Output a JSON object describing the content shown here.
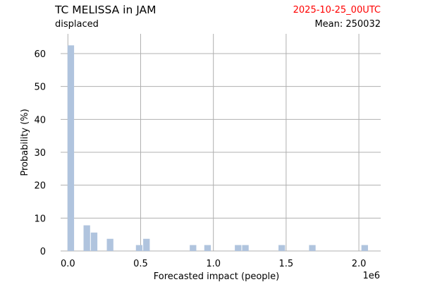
{
  "header": {
    "title": "TC MELISSA in JAM",
    "subtitle": "displaced",
    "date": "2025-10-25_00UTC",
    "mean": "Mean: 250032"
  },
  "colors": {
    "bar": "#b0c4de",
    "date_text": "#ff0000",
    "grid": "#b0b0b0"
  },
  "chart_data": {
    "type": "bar",
    "title": "TC MELISSA in JAM",
    "subtitle": "displaced",
    "xlabel": "Forecasted impact (people)",
    "ylabel": "Probability (%)",
    "x_scale_label": "1e6",
    "xlim": [
      -0.05,
      2.15
    ],
    "ylim": [
      0,
      66
    ],
    "grid": true,
    "x_ticks": [
      0.0,
      0.5,
      1.0,
      1.5,
      2.0
    ],
    "x_tick_labels": [
      "0.0",
      "0.5",
      "1.0",
      "1.5",
      "2.0"
    ],
    "y_ticks": [
      0,
      10,
      20,
      30,
      40,
      50,
      60
    ],
    "y_tick_labels": [
      "0",
      "10",
      "20",
      "30",
      "40",
      "50",
      "60"
    ],
    "x": [
      0.02,
      0.13,
      0.18,
      0.29,
      0.49,
      0.54,
      0.86,
      0.96,
      1.17,
      1.22,
      1.47,
      1.68,
      2.04
    ],
    "values": [
      62.5,
      7.8,
      5.6,
      3.7,
      1.8,
      3.7,
      1.8,
      1.8,
      1.8,
      1.8,
      1.8,
      1.8,
      1.8
    ],
    "bar_width": 0.045
  }
}
